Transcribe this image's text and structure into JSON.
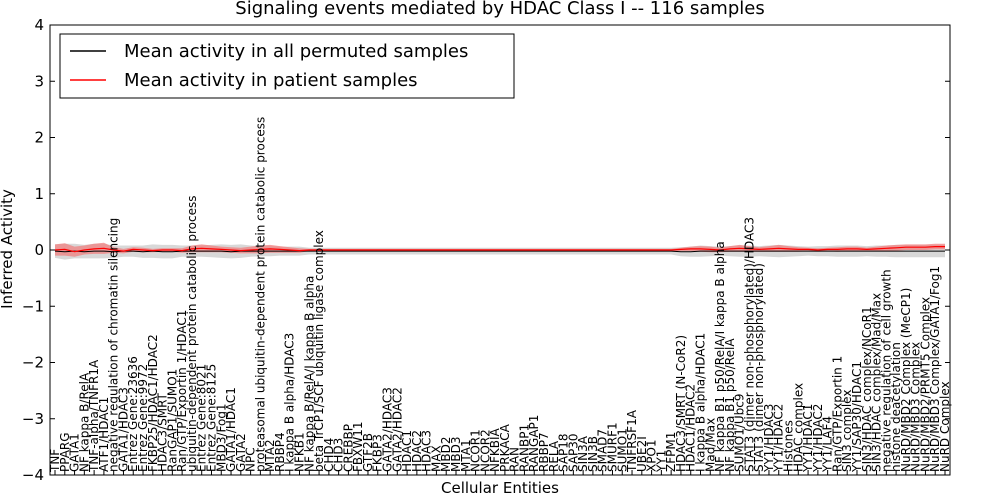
{
  "chart_data": {
    "type": "line",
    "title": "Signaling events mediated by HDAC Class I -- 116 samples",
    "xlabel": "Cellular Entities",
    "ylabel": "Inferred Activity",
    "ylim": [
      -4,
      4
    ],
    "yticks": [
      4,
      3,
      2,
      1,
      0,
      -1,
      -2,
      -3,
      -4
    ],
    "ytick_labels": [
      "4",
      "3",
      "2",
      "1",
      "0",
      "−1",
      "−2",
      "−3",
      "−4"
    ],
    "legend": {
      "placement": "top-left",
      "entries": [
        {
          "label": "Mean activity in all permuted samples",
          "color": "#000000"
        },
        {
          "label": "Mean activity in patient samples",
          "color": "#ff0000"
        }
      ]
    },
    "colors": {
      "permuted": "#000000",
      "patient": "#ff0000",
      "patient_band": "#f08080",
      "permuted_band": "#c8c8c8"
    },
    "categories": [
      "TNF",
      "PPARG",
      "GATA1",
      "NF kappa B/RelA",
      "TNF-alpha/TNFR1A",
      "ATF1/HDAC1",
      "negative regulation of chromatin silencing",
      "GATA1/HDAC3",
      "Entrez Gene:23636",
      "Entrez Gene:9972",
      "FKBP25/HDAC1/HDAC2",
      "HDAC3/SMRT",
      "RanGAP1/SUMO1",
      "Ran/GTP/Exportin 1/HDAC1",
      "ubiquitin-dependent protein catabolic process",
      "Entrez Gene:8021",
      "Entrez Gene:8125",
      "MBD3/Fog1",
      "GATA1/HDAC1",
      "GATA2",
      "NPC",
      "proteasomal ubiquitin-dependent protein catabolic process",
      "MTA2",
      "RBBP4",
      "I kappa B alpha/HDAC3",
      "NFKB1",
      "NF kappa B/RelA/I kappa B alpha",
      "beta TrCP1/SCF ubiquitin ligase complex",
      "CHD4",
      "CHD3",
      "CREBBP",
      "FBXW11",
      "GTF2B",
      "FKBP3",
      "GATA2/HDAC3",
      "GATA2/HDAC2",
      "HDAC1",
      "HDAC2",
      "HDAC3",
      "MAX",
      "MBD2",
      "MBD3",
      "MTA1",
      "NCOR1",
      "NCOR2",
      "NFKBIA",
      "PRKACA",
      "RAN",
      "RANBP1",
      "RANGAP1",
      "RBBP7",
      "RELA",
      "SAP18",
      "SAP30",
      "SIN3A",
      "SIN3B",
      "SMAD7",
      "SMURF1",
      "SUMO1",
      "TNFRSF1A",
      "UBE2I",
      "XPO1",
      "YY1",
      "ZFPM1",
      "HDAC3/SMRT (N-CoR2)",
      "HDAC1/HDAC2",
      "I kappa B alpha/HDAC1",
      "Mad/Max",
      "NF kappa B1 p50/RelA/I kappa B alpha",
      "NF kappa B1 p50/RelA",
      "SUMO1/Ubc9",
      "STAT3 (dimer non-phosphorylated)/HDAC3",
      "STAT3 (dimer non-phosphorylated)",
      "YY1/HDAC3",
      "YY1/HDAC2",
      "Histones",
      "HDAC complex",
      "YY1/HDAC1",
      "YY1/HDAC2",
      "YY1/LAF4",
      "Ran/GTP/Exportin 1",
      "SIN3 complex",
      "YY1/SAP30/HDAC1",
      "SIN3/HDAC complex/NCoR1",
      "SIN3/HDAC complex/Mad/Max",
      "negative regulation of cell growth",
      "histone deacetylation",
      "NuRD/MBD2 Complex (MeCP1)",
      "NuRD/MBD3 Complex",
      "NuRD/MBD2/PRMT5 Complex",
      "NuRD/MBD3 Complex/GATA1/Fog1",
      "NuRD Complex"
    ],
    "series": [
      {
        "name": "Mean activity in all permuted samples",
        "color": "#000000",
        "values": [
          -0.02,
          -0.03,
          -0.02,
          -0.03,
          -0.02,
          -0.02,
          -0.03,
          -0.02,
          -0.02,
          -0.03,
          -0.02,
          -0.03,
          -0.03,
          -0.02,
          -0.02,
          -0.02,
          -0.02,
          -0.02,
          -0.03,
          -0.02,
          -0.02,
          -0.02,
          -0.02,
          -0.02,
          -0.02,
          -0.02,
          -0.02,
          -0.02,
          -0.02,
          -0.02,
          -0.02,
          -0.02,
          -0.02,
          -0.02,
          -0.02,
          -0.02,
          -0.02,
          -0.02,
          -0.02,
          -0.02,
          -0.02,
          -0.02,
          -0.02,
          -0.02,
          -0.02,
          -0.02,
          -0.02,
          -0.02,
          -0.02,
          -0.02,
          -0.02,
          -0.02,
          -0.02,
          -0.02,
          -0.02,
          -0.02,
          -0.02,
          -0.02,
          -0.02,
          -0.02,
          -0.02,
          -0.02,
          -0.02,
          -0.02,
          -0.03,
          -0.03,
          -0.02,
          -0.02,
          -0.02,
          -0.02,
          -0.02,
          -0.02,
          -0.02,
          -0.02,
          -0.02,
          -0.02,
          -0.02,
          -0.02,
          -0.02,
          -0.02,
          -0.02,
          -0.02,
          -0.02,
          -0.02,
          -0.02,
          -0.02,
          -0.02,
          -0.02,
          -0.02,
          -0.02,
          -0.02,
          -0.02
        ]
      },
      {
        "name": "Mean activity in patient samples",
        "color": "#ff0000",
        "values": [
          0.0,
          0.01,
          -0.03,
          0.0,
          0.02,
          0.03,
          0.0,
          -0.02,
          0.01,
          0.0,
          -0.01,
          0.0,
          0.0,
          -0.01,
          0.02,
          0.03,
          0.02,
          0.01,
          0.0,
          -0.01,
          0.0,
          0.01,
          0.02,
          0.01,
          0.0,
          -0.01,
          0.0,
          0.0,
          0.0,
          0.0,
          0.0,
          0.0,
          0.0,
          0.0,
          0.0,
          0.0,
          0.0,
          0.0,
          0.0,
          0.0,
          0.0,
          0.0,
          0.0,
          0.0,
          0.0,
          0.0,
          0.0,
          0.0,
          0.0,
          0.0,
          0.0,
          0.0,
          0.0,
          0.0,
          0.0,
          0.0,
          0.0,
          0.0,
          0.0,
          0.0,
          0.0,
          0.0,
          0.0,
          0.0,
          0.01,
          0.02,
          0.02,
          0.01,
          0.0,
          0.02,
          0.03,
          0.02,
          0.01,
          0.02,
          0.03,
          0.02,
          0.01,
          0.01,
          0.0,
          0.01,
          0.01,
          0.02,
          0.02,
          0.01,
          0.02,
          0.03,
          0.04,
          0.05,
          0.05,
          0.05,
          0.06,
          0.06
        ]
      },
      {
        "name": "Patient spread",
        "role": "band",
        "color": "#f08080",
        "values": [
          0.1,
          0.11,
          0.09,
          0.08,
          0.09,
          0.1,
          0.05,
          0.04,
          0.04,
          0.04,
          0.03,
          0.03,
          0.03,
          0.04,
          0.06,
          0.07,
          0.06,
          0.05,
          0.05,
          0.05,
          0.06,
          0.07,
          0.07,
          0.06,
          0.05,
          0.04,
          0.02,
          0.02,
          0.02,
          0.02,
          0.02,
          0.02,
          0.02,
          0.02,
          0.02,
          0.02,
          0.02,
          0.02,
          0.02,
          0.02,
          0.02,
          0.02,
          0.02,
          0.02,
          0.02,
          0.02,
          0.02,
          0.02,
          0.02,
          0.02,
          0.02,
          0.02,
          0.02,
          0.02,
          0.02,
          0.02,
          0.02,
          0.02,
          0.02,
          0.02,
          0.02,
          0.02,
          0.02,
          0.02,
          0.03,
          0.04,
          0.05,
          0.05,
          0.04,
          0.05,
          0.06,
          0.05,
          0.04,
          0.05,
          0.06,
          0.05,
          0.04,
          0.03,
          0.03,
          0.03,
          0.04,
          0.04,
          0.04,
          0.03,
          0.04,
          0.05,
          0.05,
          0.05,
          0.05,
          0.05,
          0.05,
          0.05
        ]
      },
      {
        "name": "Permuted spread",
        "role": "band",
        "color": "#c8c8c8",
        "values": [
          0.12,
          0.14,
          0.13,
          0.12,
          0.13,
          0.13,
          0.11,
          0.1,
          0.1,
          0.11,
          0.12,
          0.12,
          0.12,
          0.1,
          0.1,
          0.1,
          0.11,
          0.12,
          0.12,
          0.12,
          0.1,
          0.09,
          0.09,
          0.08,
          0.08,
          0.08,
          0.06,
          0.06,
          0.06,
          0.06,
          0.06,
          0.06,
          0.06,
          0.06,
          0.06,
          0.06,
          0.06,
          0.06,
          0.06,
          0.06,
          0.06,
          0.06,
          0.06,
          0.06,
          0.06,
          0.06,
          0.06,
          0.06,
          0.06,
          0.06,
          0.06,
          0.06,
          0.06,
          0.06,
          0.06,
          0.06,
          0.06,
          0.06,
          0.06,
          0.06,
          0.06,
          0.06,
          0.06,
          0.06,
          0.08,
          0.09,
          0.1,
          0.09,
          0.08,
          0.09,
          0.1,
          0.1,
          0.09,
          0.1,
          0.11,
          0.1,
          0.09,
          0.08,
          0.09,
          0.09,
          0.1,
          0.1,
          0.1,
          0.09,
          0.1,
          0.1,
          0.11,
          0.11,
          0.11,
          0.11,
          0.11,
          0.11
        ]
      }
    ]
  }
}
